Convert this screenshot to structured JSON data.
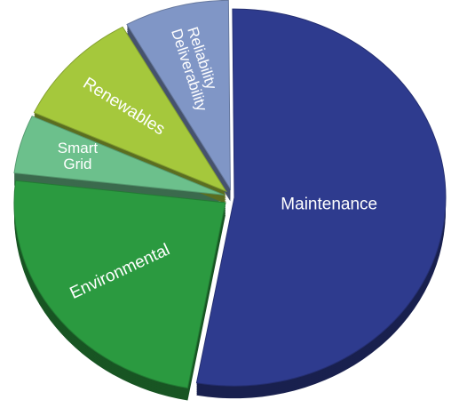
{
  "chart_data": {
    "type": "pie",
    "categories": [
      "Maintenance",
      "Environmental",
      "Smart Grid",
      "Renewables",
      "Reliability Deliverability"
    ],
    "values": [
      53,
      24,
      5,
      10,
      8
    ],
    "colors": [
      "#2e3b8e",
      "#2b9a40",
      "#6cc08c",
      "#a5c83c",
      "#8096c6"
    ]
  }
}
